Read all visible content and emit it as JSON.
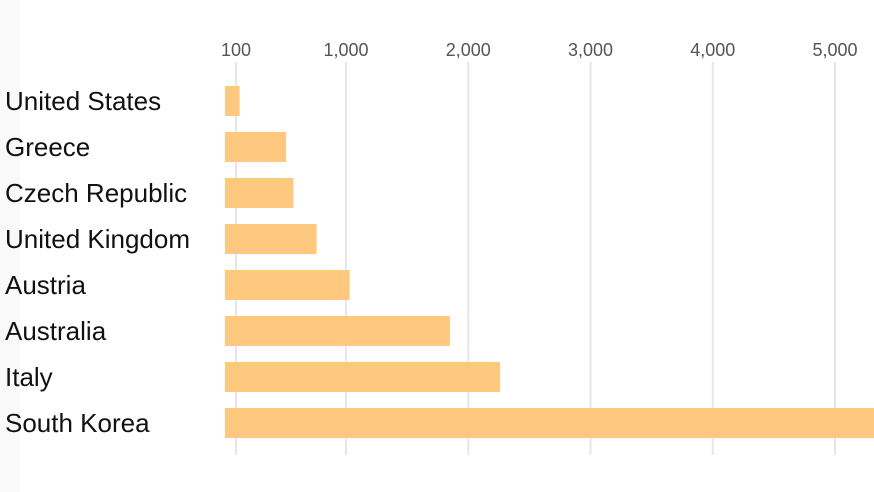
{
  "colors": {
    "bar": "#fec97f",
    "grid": "#e6e6e6",
    "tick_text": "#555555",
    "label_text": "#111111"
  },
  "chart_data": {
    "type": "bar",
    "orientation": "horizontal",
    "categories": [
      "United States",
      "Greece",
      "Czech Republic",
      "United Kingdom",
      "Austria",
      "Australia",
      "Italy",
      "South Korea"
    ],
    "values": [
      130,
      510,
      570,
      760,
      1030,
      1850,
      2260,
      5400
    ],
    "xlim": [
      0,
      5400
    ],
    "x_ticks": [
      100,
      1000,
      2000,
      3000,
      4000,
      5000
    ],
    "x_tick_labels": [
      "100",
      "1,000",
      "2,000",
      "3,000",
      "4,000",
      "5,000"
    ],
    "axis_position": "top",
    "grid": true
  }
}
